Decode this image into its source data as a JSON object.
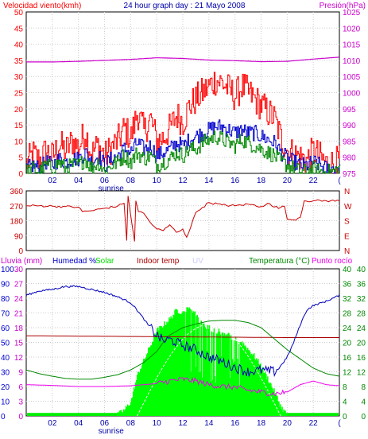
{
  "colors": {
    "gust": "#ff0000",
    "wind_avg": "#0000cc",
    "wind_low": "#008800",
    "pressure": "#cc00cc",
    "direction": "#cc0000",
    "humidity": "#0000bb",
    "temp_out": "#008800",
    "indoor": "#aa0000",
    "dew": "#ee00ee",
    "solar": "#00ff00",
    "rain": "#00ee00",
    "uv": "#ccccff",
    "grid": "#cccccc",
    "frame": "#000000"
  },
  "chart_data": [
    {
      "type": "line",
      "title": "24 hour graph day : 21 Mayo 2008",
      "left_axis_label": "Velocidad viento(kmh)",
      "right_axis_label": "Presión(hPa)",
      "x_labels": [
        "02",
        "04",
        "06",
        "08",
        "10",
        "12",
        "14",
        "16",
        "18",
        "20",
        "22",
        "("
      ],
      "x_sub_label": "sunrise",
      "left_ticks": [
        "0",
        "5",
        "10",
        "15",
        "20",
        "25",
        "30",
        "35",
        "40",
        "45",
        "50"
      ],
      "right_ticks": [
        "975",
        "980",
        "985",
        "990",
        "995",
        "1000",
        "1005",
        "1010",
        "1015",
        "1020",
        "1025"
      ],
      "ylim_left": [
        0,
        50
      ],
      "ylim_right": [
        975,
        1025
      ],
      "xlim_hours": [
        0,
        24
      ],
      "series": [
        {
          "key": "gust",
          "x": [
            0,
            0.5,
            1,
            1.5,
            2,
            2.5,
            3,
            3.5,
            4,
            4.5,
            5,
            5.5,
            6,
            6.5,
            7,
            7.5,
            8,
            8.5,
            9,
            9.5,
            10,
            10.5,
            11,
            11.5,
            12,
            12.5,
            13,
            13.5,
            14,
            14.5,
            15,
            15.5,
            16,
            16.5,
            17,
            17.5,
            18,
            18.5,
            19,
            19.5,
            20,
            20.5,
            21,
            21.5,
            22,
            22.5,
            23,
            23.5,
            24
          ],
          "values": [
            2,
            5,
            3,
            6,
            4,
            8,
            6,
            9,
            7,
            12,
            5,
            8,
            4,
            7,
            9,
            13,
            10,
            18,
            12,
            16,
            9,
            10,
            13,
            17,
            15,
            20,
            22,
            24,
            26,
            28,
            27,
            25,
            23,
            26,
            24,
            22,
            20,
            18,
            16,
            10,
            6,
            5,
            4,
            3,
            6,
            4,
            2,
            2,
            3
          ]
        },
        {
          "key": "wind_avg",
          "x": [
            0,
            0.5,
            1,
            1.5,
            2,
            2.5,
            3,
            3.5,
            4,
            4.5,
            5,
            5.5,
            6,
            6.5,
            7,
            7.5,
            8,
            8.5,
            9,
            9.5,
            10,
            10.5,
            11,
            11.5,
            12,
            12.5,
            13,
            13.5,
            14,
            14.5,
            15,
            15.5,
            16,
            16.5,
            17,
            17.5,
            18,
            18.5,
            19,
            19.5,
            20,
            20.5,
            21,
            21.5,
            22,
            22.5,
            23,
            23.5,
            24
          ],
          "values": [
            1,
            2,
            1,
            3,
            2,
            4,
            3,
            4,
            4,
            6,
            3,
            5,
            2,
            4,
            5,
            7,
            6,
            9,
            7,
            8,
            5,
            6,
            7,
            9,
            8,
            10,
            11,
            12,
            13,
            14,
            14,
            13,
            12,
            13,
            12,
            12,
            11,
            10,
            9,
            6,
            4,
            3,
            2,
            2,
            3,
            2,
            1,
            1,
            2
          ]
        },
        {
          "key": "wind_low",
          "x": [
            0,
            0.5,
            1,
            1.5,
            2,
            2.5,
            3,
            3.5,
            4,
            4.5,
            5,
            5.5,
            6,
            6.5,
            7,
            7.5,
            8,
            8.5,
            9,
            9.5,
            10,
            10.5,
            11,
            11.5,
            12,
            12.5,
            13,
            13.5,
            14,
            14.5,
            15,
            15.5,
            16,
            16.5,
            17,
            17.5,
            18,
            18.5,
            19,
            19.5,
            20,
            20.5,
            21,
            21.5,
            22,
            22.5,
            23,
            23.5,
            24
          ],
          "values": [
            0,
            1,
            0,
            2,
            1,
            3,
            1,
            2,
            2,
            4,
            1,
            3,
            0,
            2,
            3,
            5,
            3,
            6,
            4,
            5,
            2,
            3,
            4,
            6,
            5,
            7,
            7,
            9,
            10,
            11,
            10,
            9,
            8,
            10,
            9,
            8,
            7,
            6,
            5,
            3,
            2,
            1,
            0,
            0,
            1,
            0,
            0,
            0,
            1
          ]
        },
        {
          "key": "pressure",
          "axis": "right",
          "x": [
            0,
            2,
            4,
            6,
            8,
            10,
            12,
            14,
            16,
            18,
            20,
            22,
            24
          ],
          "values": [
            1009.5,
            1009.5,
            1009.7,
            1010,
            1010.3,
            1010.8,
            1010.6,
            1010.1,
            1009.9,
            1009.6,
            1009.7,
            1010.4,
            1011
          ]
        }
      ]
    },
    {
      "type": "line",
      "left_ticks": [
        "0",
        "90",
        "180",
        "270",
        "360"
      ],
      "right_ticks": [
        "N",
        "E",
        "S",
        "W",
        "N"
      ],
      "ylim": [
        0,
        360
      ],
      "xlim_hours": [
        0,
        24
      ],
      "series": [
        {
          "key": "direction",
          "x": [
            0,
            1,
            2,
            3,
            4,
            4.3,
            5,
            6,
            7,
            7.5,
            7.7,
            7.8,
            8.3,
            8.4,
            8.6,
            9,
            9.5,
            10,
            10.5,
            11,
            11.5,
            12,
            12.3,
            12.6,
            13,
            13.5,
            14,
            15,
            16,
            17,
            18,
            18.5,
            19,
            19.5,
            19.8,
            20,
            20.5,
            21,
            21.3,
            22,
            23,
            24
          ],
          "values": [
            270,
            270,
            268,
            265,
            262,
            235,
            240,
            255,
            268,
            285,
            60,
            330,
            55,
            300,
            235,
            225,
            170,
            130,
            120,
            155,
            110,
            130,
            80,
            140,
            230,
            260,
            290,
            275,
            270,
            280,
            265,
            285,
            262,
            260,
            265,
            190,
            185,
            200,
            300,
            300,
            300,
            300
          ]
        }
      ]
    },
    {
      "type": "line",
      "labels": {
        "rain": "Lluvia (mm)",
        "humidity": "Humedad %",
        "solar": "Solar",
        "indoor": "Indoor temp",
        "uv": "UV",
        "temp": "Temperatura (°C)",
        "dew": "Punto rocío"
      },
      "x_labels": [
        "02",
        "04",
        "06",
        "08",
        "10",
        "12",
        "14",
        "16",
        "18",
        "20",
        "22",
        "("
      ],
      "x_sub_label": "sunrise",
      "humidity_ticks": [
        "0",
        "10",
        "20",
        "30",
        "40",
        "50",
        "60",
        "70",
        "80",
        "90",
        "100"
      ],
      "rain_ticks": [
        "0",
        "3",
        "6",
        "9",
        "12",
        "15",
        "18",
        "21",
        "24",
        "27",
        "30"
      ],
      "temp_ticks": [
        "0",
        "4",
        "8",
        "12",
        "16",
        "20",
        "24",
        "28",
        "32",
        "36",
        "40"
      ],
      "ylim_humidity": [
        0,
        100
      ],
      "ylim_temp": [
        0,
        40
      ],
      "xlim_hours": [
        0,
        24
      ],
      "series": [
        {
          "key": "humidity",
          "axis": "humidity",
          "x": [
            0,
            1,
            2,
            3,
            4,
            5,
            6,
            7,
            8,
            8.5,
            9,
            9.5,
            10,
            10.5,
            11,
            11.5,
            12,
            13,
            14,
            15,
            16,
            17,
            18,
            19,
            19.5,
            20,
            20.5,
            21,
            21.5,
            22,
            23,
            24
          ],
          "values": [
            82,
            85,
            86,
            88,
            88,
            86,
            84,
            81,
            77,
            72,
            66,
            60,
            55,
            51,
            52,
            50,
            48,
            45,
            40,
            37,
            33,
            30,
            31,
            30,
            34,
            40,
            50,
            62,
            72,
            75,
            78,
            82
          ]
        },
        {
          "key": "temp_out",
          "axis": "temp",
          "x": [
            0,
            1,
            2,
            3,
            4,
            5,
            6,
            7,
            8,
            9,
            10,
            10.5,
            11,
            12,
            13,
            14,
            15,
            16,
            17,
            18,
            19,
            20,
            21,
            22,
            23,
            24
          ],
          "values": [
            12.5,
            11.5,
            10.8,
            10.2,
            10.0,
            10.0,
            10.5,
            11.2,
            12.5,
            14.5,
            17.5,
            20,
            22,
            24,
            25,
            25.8,
            26,
            26,
            25.4,
            24,
            21,
            18,
            15.5,
            13,
            11.5,
            10.8
          ]
        },
        {
          "key": "indoor",
          "axis": "temp",
          "x": [
            0,
            4,
            8,
            12,
            16,
            20,
            24
          ],
          "values": [
            21.8,
            21.7,
            21.6,
            21.5,
            21.4,
            21.3,
            21.3
          ]
        },
        {
          "key": "dew",
          "axis": "temp",
          "x": [
            0,
            2,
            4,
            6,
            8,
            10,
            11,
            12,
            13,
            14,
            15,
            16,
            17,
            18,
            19,
            20,
            21,
            22,
            23,
            24
          ],
          "values": [
            8.5,
            8.3,
            8.0,
            8.0,
            8.2,
            8.8,
            9.5,
            10.0,
            9.5,
            8.5,
            8.0,
            7.8,
            7.0,
            6.5,
            6.0,
            6.5,
            8.5,
            9.5,
            8.5,
            8.2
          ]
        },
        {
          "key": "solar",
          "axis": "humidity",
          "x": [
            6.5,
            7,
            7.5,
            8,
            8.5,
            9,
            9.5,
            10,
            10.5,
            11,
            11.5,
            12,
            12.5,
            13,
            13.5,
            14,
            14.5,
            15,
            15.5,
            16,
            16.5,
            17,
            17.5,
            18,
            18.5,
            19,
            19.5,
            20
          ],
          "values": [
            0,
            1,
            4,
            10,
            28,
            38,
            48,
            58,
            62,
            66,
            72,
            70,
            74,
            68,
            62,
            60,
            58,
            57,
            55,
            52,
            50,
            45,
            40,
            33,
            25,
            16,
            6,
            0
          ]
        },
        {
          "key": "rain",
          "axis": "humidity",
          "x": [
            0,
            24
          ],
          "values": [
            1.5,
            1.5
          ]
        }
      ]
    }
  ]
}
